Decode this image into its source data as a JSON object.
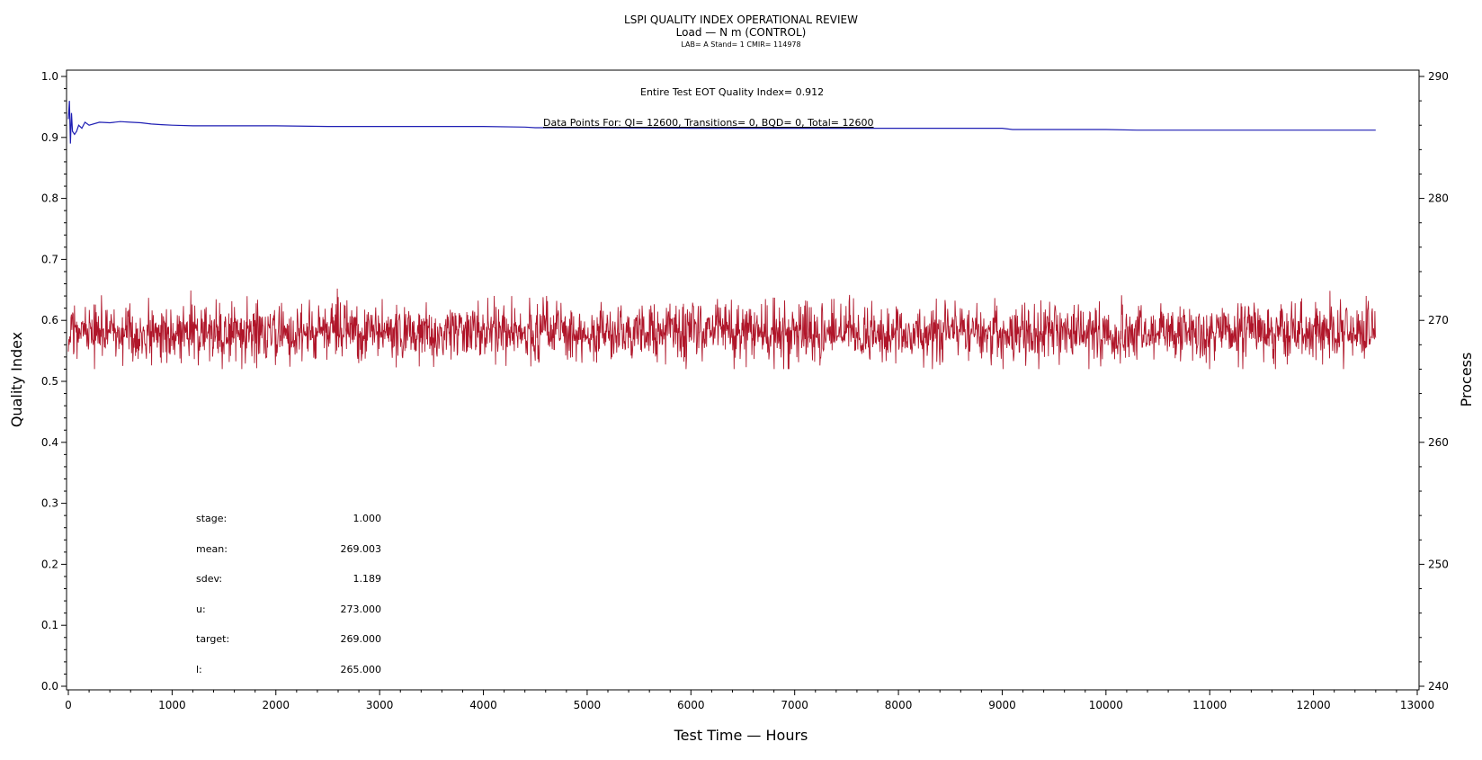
{
  "chart_data": {
    "type": "line",
    "title": "LSPI QUALITY INDEX OPERATIONAL REVIEW",
    "subtitle": "Load — N m (CONTROL)",
    "subtitle2": "LAB= A Stand= 1 CMIR= 114978",
    "xlabel": "Test Time — Hours",
    "ylabel": "Quality Index",
    "y2label": "Process",
    "xlim": [
      0,
      13000
    ],
    "ylim": [
      0.0,
      1.0
    ],
    "y2lim": [
      240,
      290
    ],
    "x_ticks": [
      "0",
      "1000",
      "2000",
      "3000",
      "4000",
      "5000",
      "6000",
      "7000",
      "8000",
      "9000",
      "10000",
      "11000",
      "12000",
      "13000"
    ],
    "y_ticks": [
      "0.0",
      "0.1",
      "0.2",
      "0.3",
      "0.4",
      "0.5",
      "0.6",
      "0.7",
      "0.8",
      "0.9",
      "1.0"
    ],
    "y2_ticks": [
      "240",
      "250",
      "260",
      "270",
      "280",
      "290"
    ],
    "annotations": {
      "qi_text": "Entire Test EOT Quality Index=   0.912",
      "points_text": "Data Points For: QI= 12600, Transitions=      0, BQD=      0, Total= 12600"
    },
    "stats": [
      {
        "label": "stage:",
        "value": "1.000"
      },
      {
        "label": "mean:",
        "value": "269.003"
      },
      {
        "label": "sdev:",
        "value": "1.189"
      },
      {
        "label": "u:",
        "value": "273.000"
      },
      {
        "label": "target:",
        "value": "269.000"
      },
      {
        "label": "l:",
        "value": "265.000"
      }
    ],
    "series": [
      {
        "axis": "left",
        "color": "#1f1fb4",
        "x": [
          0,
          10,
          20,
          30,
          40,
          60,
          80,
          100,
          130,
          160,
          200,
          300,
          400,
          500,
          600,
          700,
          800,
          900,
          1000,
          1200,
          1500,
          2000,
          2500,
          3000,
          3500,
          4000,
          4400,
          4500,
          5000,
          6000,
          7000,
          8000,
          9000,
          9100,
          10000,
          10300,
          11000,
          12000,
          12600
        ],
        "values": [
          0.93,
          0.96,
          0.89,
          0.94,
          0.91,
          0.905,
          0.91,
          0.92,
          0.915,
          0.925,
          0.92,
          0.925,
          0.924,
          0.926,
          0.925,
          0.924,
          0.922,
          0.921,
          0.92,
          0.919,
          0.919,
          0.919,
          0.918,
          0.918,
          0.918,
          0.918,
          0.917,
          0.916,
          0.916,
          0.915,
          0.915,
          0.915,
          0.915,
          0.913,
          0.913,
          0.912,
          0.912,
          0.912,
          0.912
        ]
      },
      {
        "axis": "right",
        "color": "#b0162a",
        "x_start": 0,
        "x_end": 12600,
        "n_points": 12600,
        "mean": 269.003,
        "sdev": 1.189,
        "max": 275.0,
        "min": 266.0
      }
    ]
  }
}
